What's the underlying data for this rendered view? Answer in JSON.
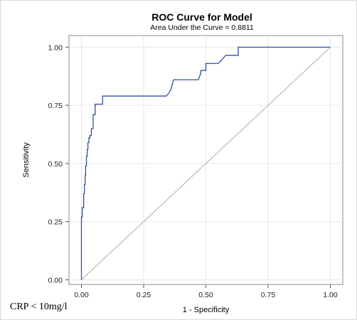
{
  "chart_data": {
    "type": "line",
    "title": "ROC Curve for Model",
    "subtitle": "Area Under the Curve = 0.8811",
    "xlabel": "1 - Specificity",
    "ylabel": "Sensitivity",
    "xlim": [
      -0.05,
      1.05
    ],
    "ylim": [
      -0.02,
      1.05
    ],
    "x_ticks": [
      "0.00",
      "0.25",
      "0.50",
      "0.75",
      "1.00"
    ],
    "y_ticks": [
      "0.00",
      "0.25",
      "0.50",
      "0.75",
      "1.00"
    ],
    "grid": true,
    "series": [
      {
        "color": "#2f4fa1",
        "x": [
          0.0,
          0.0,
          0.003,
          0.003,
          0.005,
          0.005,
          0.009,
          0.009,
          0.012,
          0.012,
          0.015,
          0.015,
          0.017,
          0.017,
          0.02,
          0.02,
          0.023,
          0.023,
          0.026,
          0.026,
          0.03,
          0.03,
          0.034,
          0.034,
          0.04,
          0.04,
          0.047,
          0.047,
          0.055,
          0.055,
          0.065,
          0.065,
          0.085,
          0.085,
          0.34,
          0.35,
          0.36,
          0.37,
          0.47,
          0.48,
          0.48,
          0.5,
          0.5,
          0.55,
          0.55,
          0.58,
          0.58,
          0.63,
          0.63,
          1.0
        ],
        "y": [
          0.0,
          0.27,
          0.27,
          0.31,
          0.31,
          0.31,
          0.31,
          0.37,
          0.37,
          0.41,
          0.41,
          0.45,
          0.45,
          0.49,
          0.49,
          0.53,
          0.53,
          0.56,
          0.56,
          0.59,
          0.59,
          0.61,
          0.61,
          0.62,
          0.62,
          0.65,
          0.65,
          0.71,
          0.71,
          0.755,
          0.755,
          0.755,
          0.755,
          0.79,
          0.79,
          0.8,
          0.82,
          0.86,
          0.86,
          0.89,
          0.9,
          0.9,
          0.93,
          0.93,
          0.93,
          0.965,
          0.965,
          0.965,
          1.0,
          1.0
        ]
      },
      {
        "color": "#b4b4b4",
        "x": [
          0,
          1
        ],
        "y": [
          0,
          1
        ]
      }
    ]
  },
  "footnote": "CRP < 10mg/l"
}
